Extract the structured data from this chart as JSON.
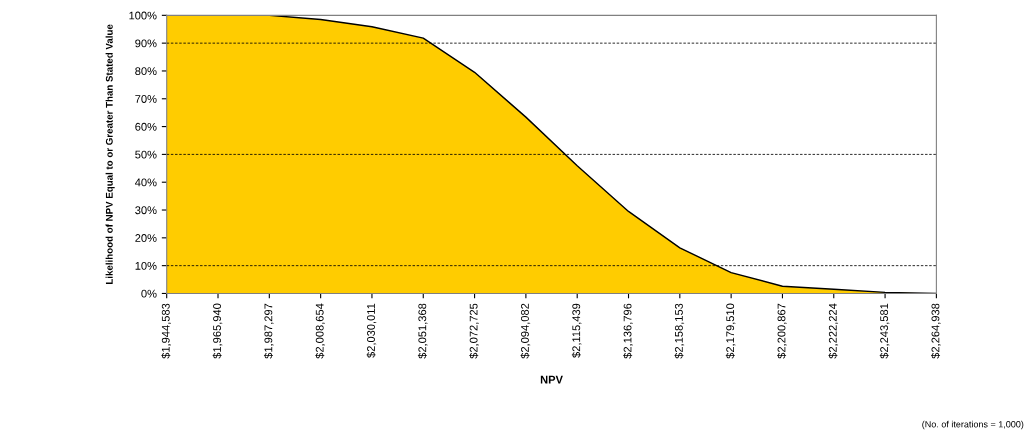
{
  "chart_data": {
    "type": "area",
    "xlabel": "NPV",
    "ylabel": "Likelihood of NPV Equal to or Greater Than Stated Value",
    "categories": [
      "$1,944,583",
      "$1,965,940",
      "$1,987,297",
      "$2,008,654",
      "$2,030,011",
      "$2,051,368",
      "$2,072,725",
      "$2,094,082",
      "$2,115,439",
      "$2,136,796",
      "$2,158,153",
      "$2,179,510",
      "$2,200,867",
      "$2,222,224",
      "$2,243,581",
      "$2,264,938"
    ],
    "series": [
      {
        "color": "#ffcc00",
        "values": [
          100,
          100,
          100,
          98.5,
          95.9,
          91.8,
          79.5,
          63.4,
          45.9,
          29.5,
          16.4,
          7.5,
          2.6,
          1.5,
          0.4,
          0
        ]
      }
    ],
    "ylim": [
      0,
      100
    ],
    "yticks": [
      {
        "value": 0,
        "label": "0%"
      },
      {
        "value": 10,
        "label": "10%"
      },
      {
        "value": 20,
        "label": "20%"
      },
      {
        "value": 30,
        "label": "30%"
      },
      {
        "value": 40,
        "label": "40%"
      },
      {
        "value": 50,
        "label": "50%"
      },
      {
        "value": 60,
        "label": "60%"
      },
      {
        "value": 70,
        "label": "70%"
      },
      {
        "value": 80,
        "label": "80%"
      },
      {
        "value": 90,
        "label": "90%"
      },
      {
        "value": 100,
        "label": "100%"
      }
    ],
    "ref_lines": [
      {
        "axis": "y",
        "value": 10,
        "color": "#000000",
        "line_style": "dashed"
      },
      {
        "axis": "y",
        "value": 50,
        "color": "#000000",
        "line_style": "dashed"
      },
      {
        "axis": "y",
        "value": 90,
        "color": "#000000",
        "line_style": "dashed"
      }
    ],
    "grid": false,
    "legend": false,
    "annotations": [
      "(No. of iterations = 1,000)"
    ]
  }
}
